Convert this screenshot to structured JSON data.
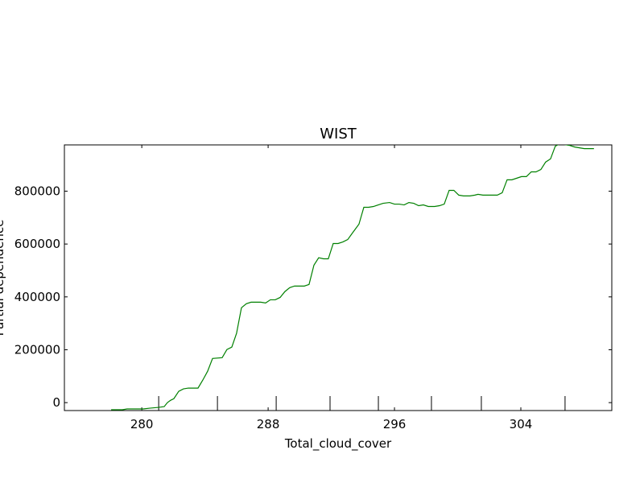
{
  "chart_data": {
    "type": "line",
    "title": "WIST",
    "x_label": "Total_cloud_cover",
    "y_label": "Partial dependence",
    "x": [
      278.06,
      278.77,
      279.07,
      279.79,
      280.09,
      280.5,
      281.06,
      281.42,
      281.62,
      281.83,
      282.03,
      282.34,
      282.64,
      282.95,
      283.56,
      283.86,
      284.17,
      284.48,
      285.09,
      285.39,
      285.7,
      286.0,
      286.31,
      286.62,
      286.92,
      287.53,
      287.84,
      288.14,
      288.45,
      288.76,
      289.06,
      289.37,
      289.67,
      290.29,
      290.59,
      290.9,
      291.2,
      291.51,
      291.81,
      292.12,
      292.43,
      292.73,
      293.04,
      293.34,
      293.75,
      294.06,
      294.36,
      294.67,
      294.97,
      295.28,
      295.69,
      296.0,
      296.3,
      296.61,
      296.91,
      297.22,
      297.53,
      297.83,
      298.14,
      298.54,
      298.85,
      299.15,
      299.46,
      299.76,
      300.07,
      300.37,
      300.78,
      301.09,
      301.29,
      301.6,
      301.9,
      302.51,
      302.82,
      303.13,
      303.43,
      303.74,
      304.04,
      304.35,
      304.66,
      304.96,
      305.27,
      305.57,
      305.88,
      306.18,
      306.49,
      306.8,
      307.1,
      307.41,
      307.71,
      308.02,
      308.63
    ],
    "series": [
      {
        "name": "Partial dependence",
        "color": "#008000",
        "values": [
          -27000,
          -27000,
          -24000,
          -24000,
          -24000,
          -21000,
          -18000,
          -15000,
          0,
          9000,
          15000,
          43000,
          52000,
          55000,
          55000,
          85000,
          119000,
          167000,
          170000,
          201000,
          210000,
          262000,
          359000,
          374000,
          380000,
          380000,
          377000,
          389000,
          389000,
          398000,
          420000,
          435000,
          441000,
          441000,
          447000,
          520000,
          548000,
          544000,
          544000,
          602000,
          602000,
          608000,
          617000,
          642000,
          675000,
          739000,
          739000,
          742000,
          748000,
          754000,
          757000,
          751000,
          751000,
          748000,
          757000,
          754000,
          745000,
          748000,
          742000,
          742000,
          745000,
          751000,
          803000,
          803000,
          785000,
          782000,
          782000,
          785000,
          788000,
          785000,
          785000,
          785000,
          794000,
          843000,
          843000,
          849000,
          855000,
          855000,
          873000,
          873000,
          882000,
          910000,
          922000,
          970000,
          980000,
          976000,
          973000,
          967000,
          964000,
          961000,
          961000
        ]
      }
    ],
    "deciles": [
      281.07,
      284.79,
      288.51,
      291.92,
      294.98,
      298.34,
      301.5,
      306.8
    ],
    "xlim": [
      275.1,
      309.76
    ],
    "ylim": [
      -30000,
      975000
    ],
    "xticks": [
      280,
      288,
      296,
      304
    ],
    "yticks": [
      0,
      200000,
      400000,
      600000,
      800000
    ]
  }
}
